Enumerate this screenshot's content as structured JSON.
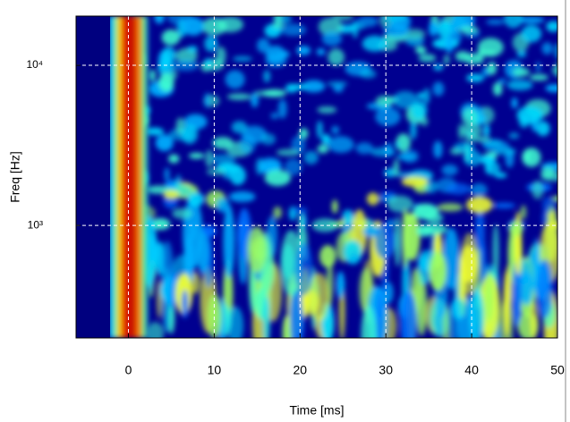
{
  "chart_data": {
    "type": "heatmap",
    "x_label": "Time [ms]",
    "y_label": "Freq [Hz]",
    "xlim": [
      -6.1,
      50
    ],
    "xticks": [
      0,
      10,
      20,
      30,
      40,
      50
    ],
    "ylim": [
      198,
      20300
    ],
    "y_log_scale": true,
    "yticks": [
      {
        "value": 1000,
        "label": "10³"
      },
      {
        "value": 10000,
        "label": "10⁴"
      }
    ],
    "grid": true
  }
}
